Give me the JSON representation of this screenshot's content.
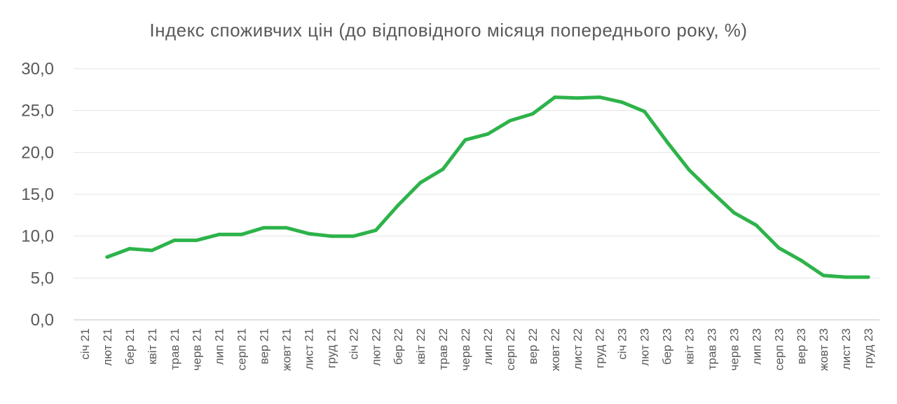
{
  "chart_data": {
    "type": "line",
    "title": "Індекс споживчих цін (до відповідного місяця попереднього року, %)",
    "xlabel": "",
    "ylabel": "",
    "ylim": [
      0,
      30
    ],
    "yticks": [
      "0,0",
      "5,0",
      "10,0",
      "15,0",
      "20,0",
      "25,0",
      "30,0"
    ],
    "grid": true,
    "line_color": "#2db34a",
    "categories": [
      "січ 21",
      "лют 21",
      "бер 21",
      "квіт 21",
      "трав 21",
      "черв 21",
      "лип 21",
      "серп 21",
      "вер 21",
      "жовт 21",
      "лист 21",
      "груд 21",
      "січ 22",
      "лют 22",
      "бер 22",
      "квіт 22",
      "трав 22",
      "черв 22",
      "лип 22",
      "серп 22",
      "вер 22",
      "жовт 22",
      "лист 22",
      "груд 22",
      "січ 23",
      "лют 23",
      "бер 23",
      "квіт 23",
      "трав 23",
      "черв 23",
      "лип 23",
      "серп 23",
      "вер 23",
      "жовт 23",
      "лист 23",
      "груд 23"
    ],
    "series": [
      {
        "values": [
          null,
          7.5,
          8.5,
          8.3,
          9.5,
          9.5,
          10.2,
          10.2,
          11.0,
          11.0,
          10.3,
          10.0,
          10.0,
          10.7,
          13.7,
          16.4,
          18.0,
          21.5,
          22.2,
          23.8,
          24.6,
          26.6,
          26.5,
          26.6,
          26.0,
          24.9,
          21.3,
          17.9,
          15.3,
          12.8,
          11.3,
          8.6,
          7.1,
          5.3,
          5.1,
          5.1
        ]
      }
    ]
  }
}
